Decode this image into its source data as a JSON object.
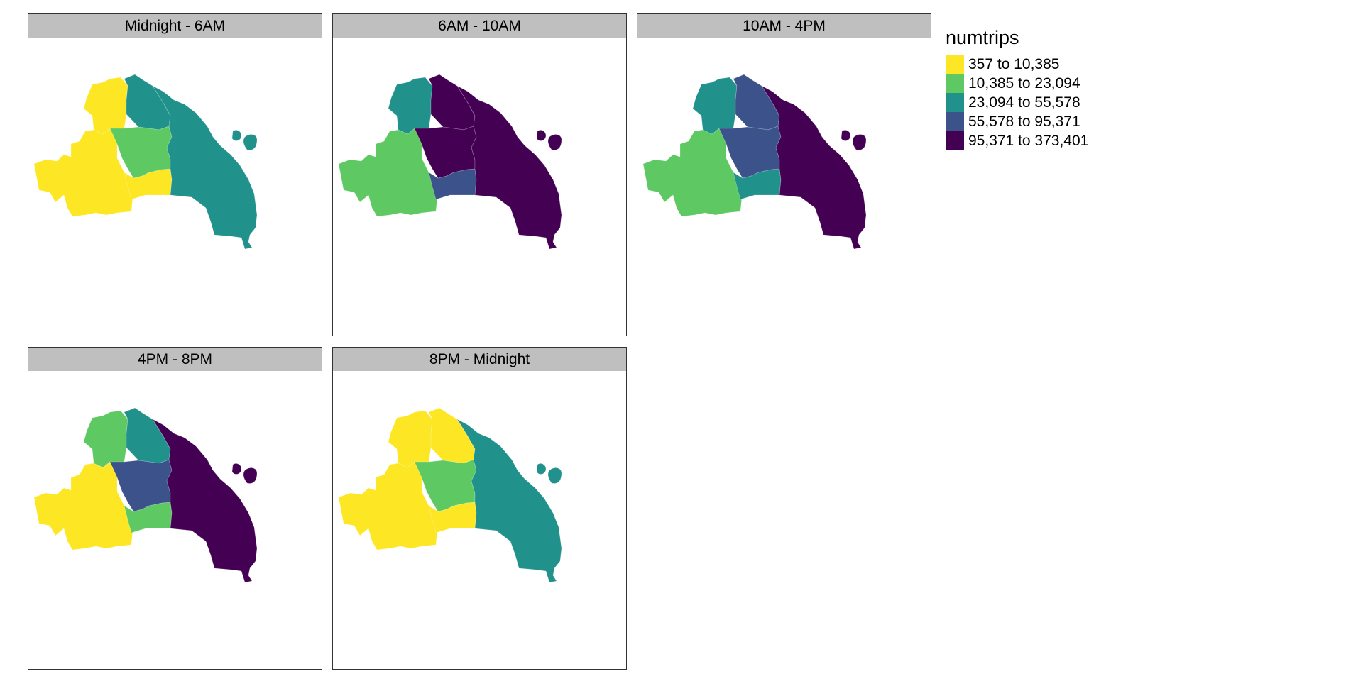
{
  "legend": {
    "title": "numtrips",
    "classes": [
      {
        "label": "357 to 10,385",
        "color": "#fde725"
      },
      {
        "label": "10,385 to 23,094",
        "color": "#5ec962"
      },
      {
        "label": "23,094 to 55,578",
        "color": "#21918c"
      },
      {
        "label": "55,578 to 95,371",
        "color": "#3b528b"
      },
      {
        "label": "95,371 to 373,401",
        "color": "#440154"
      }
    ]
  },
  "panels": [
    {
      "title": "Midnight - 6AM",
      "classes": {
        "west": 0,
        "nw": 0,
        "north": 2,
        "south": 0,
        "central": 1,
        "east": 2,
        "islands": 2
      }
    },
    {
      "title": "6AM - 10AM",
      "classes": {
        "west": 1,
        "nw": 2,
        "north": 4,
        "south": 3,
        "central": 4,
        "east": 4,
        "islands": 4
      }
    },
    {
      "title": "10AM - 4PM",
      "classes": {
        "west": 1,
        "nw": 2,
        "north": 3,
        "south": 2,
        "central": 3,
        "east": 4,
        "islands": 4
      }
    },
    {
      "title": "4PM - 8PM",
      "classes": {
        "west": 0,
        "nw": 1,
        "north": 2,
        "south": 1,
        "central": 3,
        "east": 4,
        "islands": 4
      }
    },
    {
      "title": "8PM - Midnight",
      "classes": {
        "west": 0,
        "nw": 0,
        "north": 0,
        "south": 0,
        "central": 1,
        "east": 2,
        "islands": 2
      }
    }
  ]
}
